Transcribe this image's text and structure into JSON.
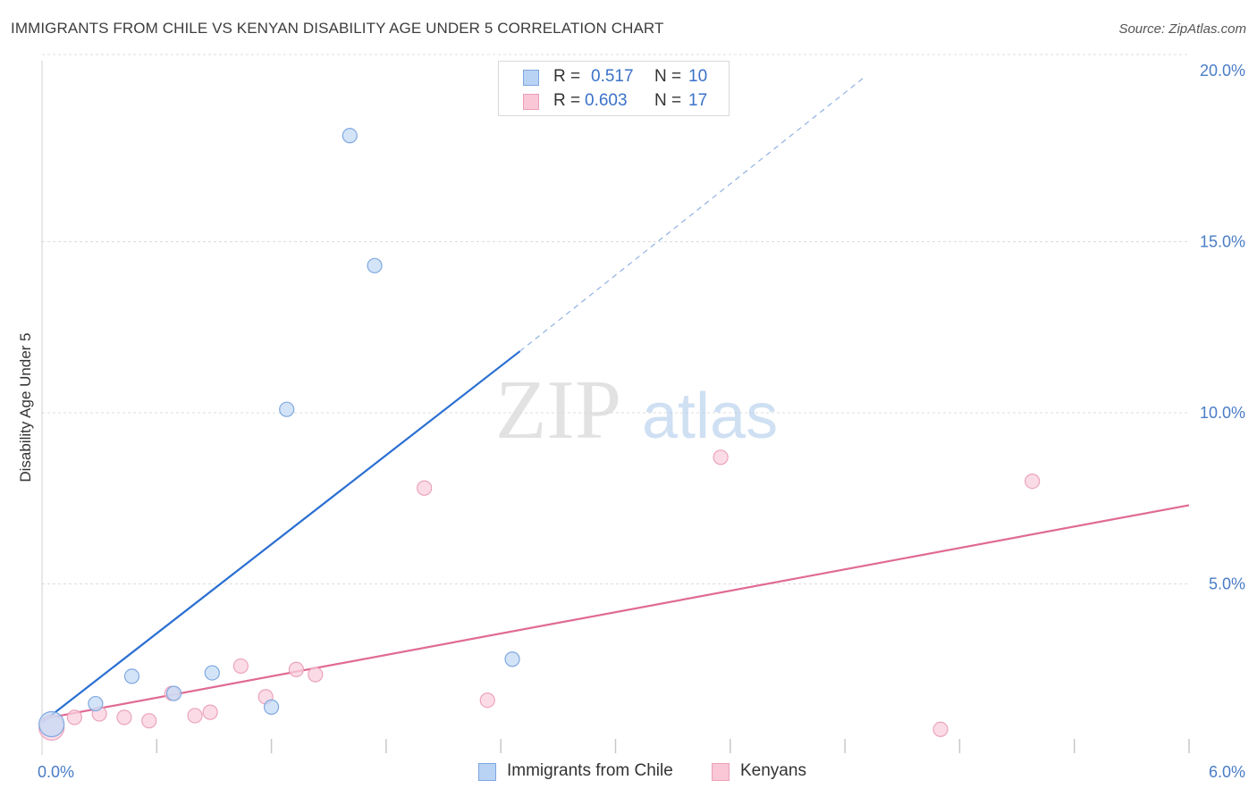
{
  "title": "IMMIGRANTS FROM CHILE VS KENYAN DISABILITY AGE UNDER 5 CORRELATION CHART",
  "source": "Source: ZipAtlas.com",
  "watermark": {
    "zip": "ZIP",
    "atlas": "atlas"
  },
  "legend": {
    "r_label": "R =",
    "n_label": "N =",
    "rows": [
      {
        "name": "Immigrants from Chile",
        "r": "0.517",
        "n": "10",
        "color": "#b9d3f5",
        "border": "#7da6e0"
      },
      {
        "name": "Kenyans",
        "r": "0.603",
        "n": "17",
        "color": "#f9c7d6",
        "border": "#eda0b8"
      }
    ]
  },
  "colors": {
    "blue_line": "#2a6fd1",
    "pink_line": "#e06a95",
    "blue_point_fill": "#c5dbf6",
    "blue_point_stroke": "#7ea8e0",
    "pink_point_fill": "#fad0dd",
    "pink_point_stroke": "#eba3bb",
    "tick_label": "#4a7cc7",
    "grid": "#dddddd"
  },
  "chart_data": {
    "type": "scatter",
    "title": "IMMIGRANTS FROM CHILE VS KENYAN DISABILITY AGE UNDER 5 CORRELATION CHART",
    "xlabel": "",
    "ylabel": "Disability Age Under 5",
    "xlim": [
      0,
      6
    ],
    "ylim": [
      0,
      20
    ],
    "x_tick_labels": [
      {
        "value": 0,
        "label": "0.0%"
      },
      {
        "value": 6,
        "label": "6.0%"
      }
    ],
    "y_tick_labels": [
      {
        "value": 5,
        "label": "5.0%"
      },
      {
        "value": 10,
        "label": "10.0%"
      },
      {
        "value": 15,
        "label": "15.0%"
      },
      {
        "value": 20,
        "label": "20.0%"
      }
    ],
    "grid": true,
    "legend_position": "top-center",
    "series": [
      {
        "name": "Immigrants from Chile",
        "color": "#b9d3f5",
        "points": [
          {
            "x": 0.05,
            "y": 0.9,
            "big": true
          },
          {
            "x": 0.28,
            "y": 1.5
          },
          {
            "x": 0.47,
            "y": 2.3
          },
          {
            "x": 0.69,
            "y": 1.8
          },
          {
            "x": 0.89,
            "y": 2.4
          },
          {
            "x": 1.2,
            "y": 1.4
          },
          {
            "x": 1.28,
            "y": 10.1
          },
          {
            "x": 1.61,
            "y": 18.1
          },
          {
            "x": 1.74,
            "y": 14.3
          },
          {
            "x": 2.46,
            "y": 2.8
          }
        ],
        "trend": {
          "x0": 0.0,
          "y0": 0.95,
          "x1": 2.5,
          "y1": 11.8,
          "dash_to_x": 4.3,
          "dash_to_y": 19.8
        }
      },
      {
        "name": "Kenyans",
        "color": "#f9c7d6",
        "points": [
          {
            "x": 0.05,
            "y": 0.8,
            "big": true
          },
          {
            "x": 0.17,
            "y": 1.1
          },
          {
            "x": 0.3,
            "y": 1.2
          },
          {
            "x": 0.43,
            "y": 1.1
          },
          {
            "x": 0.56,
            "y": 1.0
          },
          {
            "x": 0.68,
            "y": 1.8
          },
          {
            "x": 0.8,
            "y": 1.15
          },
          {
            "x": 0.88,
            "y": 1.25
          },
          {
            "x": 1.04,
            "y": 2.6
          },
          {
            "x": 1.17,
            "y": 1.7
          },
          {
            "x": 1.33,
            "y": 2.5
          },
          {
            "x": 1.43,
            "y": 2.35
          },
          {
            "x": 2.0,
            "y": 7.8
          },
          {
            "x": 2.33,
            "y": 1.6
          },
          {
            "x": 3.55,
            "y": 8.7
          },
          {
            "x": 4.7,
            "y": 0.75
          },
          {
            "x": 5.18,
            "y": 8.0
          }
        ],
        "trend": {
          "x0": 0.0,
          "y0": 1.05,
          "x1": 6.0,
          "y1": 7.3
        }
      }
    ]
  }
}
